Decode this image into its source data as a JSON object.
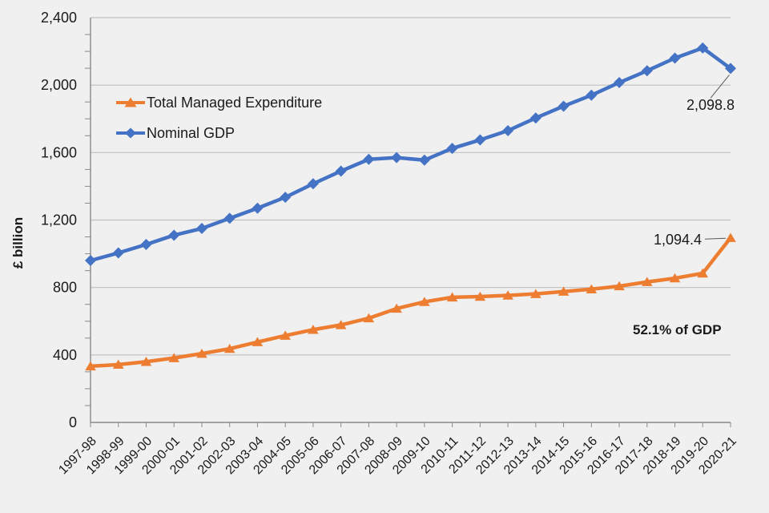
{
  "chart_data": {
    "type": "line",
    "title": "",
    "xlabel": "",
    "ylabel": "£ billion",
    "ylim": [
      0,
      2400
    ],
    "ytick_step": 400,
    "ytick_labels": [
      "0",
      "400",
      "800",
      "1,200",
      "1,600",
      "2,000",
      "2,400"
    ],
    "minor_ytick_step": 100,
    "grid": "horizontal",
    "legend_position": "upper-left-inside",
    "categories": [
      "1997-98",
      "1998-99",
      "1999-00",
      "2000-01",
      "2001-02",
      "2002-03",
      "2003-04",
      "2004-05",
      "2005-06",
      "2006-07",
      "2007-08",
      "2008-09",
      "2009-10",
      "2010-11",
      "2011-12",
      "2012-13",
      "2013-14",
      "2014-15",
      "2015-16",
      "2016-17",
      "2017-18",
      "2018-19",
      "2019-20",
      "2020-21"
    ],
    "series": [
      {
        "name": "Total Managed Expenditure",
        "color": "#ED7D31",
        "marker": "triangle",
        "values": [
          333,
          343,
          360,
          382,
          408,
          437,
          477,
          515,
          550,
          578,
          618,
          675,
          715,
          742,
          746,
          753,
          762,
          776,
          790,
          808,
          833,
          855,
          884,
          1094.4
        ]
      },
      {
        "name": "Nominal GDP",
        "color": "#4472C4",
        "marker": "diamond",
        "values": [
          960,
          1005,
          1055,
          1110,
          1150,
          1210,
          1270,
          1335,
          1415,
          1490,
          1560,
          1570,
          1555,
          1625,
          1675,
          1730,
          1805,
          1875,
          1940,
          2015,
          2085,
          2160,
          2220,
          2098.8
        ]
      }
    ],
    "annotations": {
      "gdp_final": {
        "text": "2,098.8",
        "series": "Nominal GDP",
        "category": "2020-21"
      },
      "tme_final": {
        "text": "1,094.4",
        "series": "Total Managed Expenditure",
        "category": "2020-21"
      },
      "percent_of_gdp": {
        "text": "52.1% of GDP"
      }
    },
    "colors": {
      "background": "#F0F0F0",
      "gridline": "#C0C0C0",
      "axis": "#898989",
      "text": "#1a1a1a",
      "leader_line": "#595959"
    }
  }
}
